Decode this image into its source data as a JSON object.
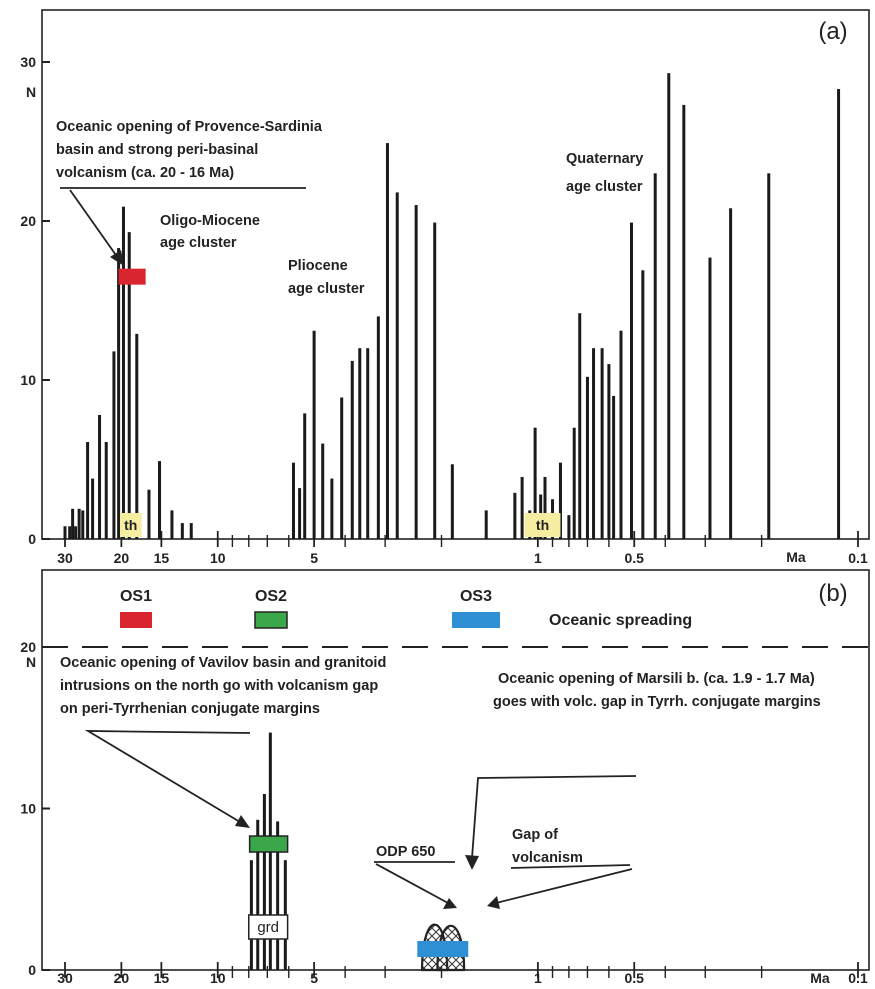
{
  "chart_data": [
    {
      "type": "bar",
      "panel_label": "(a)",
      "ylabel": "N",
      "ylim": [
        0,
        33
      ],
      "y_ticks": [
        {
          "value": 0,
          "label": "0"
        },
        {
          "value": 10,
          "label": "10"
        },
        {
          "value": 20,
          "label": "20"
        },
        {
          "value": 30,
          "label": "30"
        }
      ],
      "x_scale": "log",
      "x_direction": "reversed",
      "xlabel": "Ma",
      "x_ticks": [
        {
          "value": 30,
          "label": "30"
        },
        {
          "value": 20,
          "label": "20"
        },
        {
          "value": 15,
          "label": "15"
        },
        {
          "value": 10,
          "label": "10"
        },
        {
          "value": 5,
          "label": "5"
        },
        {
          "value": 1,
          "label": "1"
        },
        {
          "value": 0.5,
          "label": "0.5"
        },
        {
          "value": 0.1,
          "label": "0.1"
        }
      ],
      "x_minor_ticks": [
        9,
        8,
        7,
        6,
        4,
        3,
        2,
        0.9,
        0.8,
        0.7,
        0.6,
        0.4,
        0.3,
        0.2
      ],
      "series": [
        {
          "points": [
            {
              "x": 30,
              "y": 0.8
            },
            {
              "x": 29,
              "y": 0.8
            },
            {
              "x": 28.4,
              "y": 1.9
            },
            {
              "x": 27.8,
              "y": 0.8
            },
            {
              "x": 27.1,
              "y": 1.9
            },
            {
              "x": 26.4,
              "y": 1.8
            },
            {
              "x": 25.5,
              "y": 6.1
            },
            {
              "x": 24.6,
              "y": 3.8
            },
            {
              "x": 23.4,
              "y": 7.8
            },
            {
              "x": 22.3,
              "y": 6.1
            },
            {
              "x": 21.1,
              "y": 11.8
            },
            {
              "x": 20.4,
              "y": 18.3
            },
            {
              "x": 19.7,
              "y": 20.9
            },
            {
              "x": 18.9,
              "y": 19.3
            },
            {
              "x": 17.9,
              "y": 12.9
            },
            {
              "x": 16.4,
              "y": 3.1
            },
            {
              "x": 15.2,
              "y": 4.9
            },
            {
              "x": 13.9,
              "y": 1.8
            },
            {
              "x": 12.9,
              "y": 1.0
            },
            {
              "x": 12.1,
              "y": 1.0
            },
            {
              "x": 5.8,
              "y": 4.8
            },
            {
              "x": 5.55,
              "y": 3.2
            },
            {
              "x": 5.35,
              "y": 7.9
            },
            {
              "x": 5.0,
              "y": 13.1
            },
            {
              "x": 4.7,
              "y": 6.0
            },
            {
              "x": 4.4,
              "y": 3.8
            },
            {
              "x": 4.1,
              "y": 8.9
            },
            {
              "x": 3.8,
              "y": 11.2
            },
            {
              "x": 3.6,
              "y": 12.0
            },
            {
              "x": 3.4,
              "y": 12.0
            },
            {
              "x": 3.15,
              "y": 14.0
            },
            {
              "x": 2.95,
              "y": 24.9
            },
            {
              "x": 2.75,
              "y": 21.8
            },
            {
              "x": 2.4,
              "y": 21.0
            },
            {
              "x": 2.1,
              "y": 19.9
            },
            {
              "x": 1.85,
              "y": 4.7
            },
            {
              "x": 1.45,
              "y": 1.8
            },
            {
              "x": 1.18,
              "y": 2.9
            },
            {
              "x": 1.12,
              "y": 3.9
            },
            {
              "x": 1.06,
              "y": 1.8
            },
            {
              "x": 1.02,
              "y": 7.0
            },
            {
              "x": 0.98,
              "y": 2.8
            },
            {
              "x": 0.95,
              "y": 3.9
            },
            {
              "x": 0.9,
              "y": 2.5
            },
            {
              "x": 0.85,
              "y": 4.8
            },
            {
              "x": 0.8,
              "y": 1.5
            },
            {
              "x": 0.77,
              "y": 7.0
            },
            {
              "x": 0.74,
              "y": 14.2
            },
            {
              "x": 0.7,
              "y": 10.2
            },
            {
              "x": 0.67,
              "y": 12.0
            },
            {
              "x": 0.63,
              "y": 12.0
            },
            {
              "x": 0.6,
              "y": 11.0
            },
            {
              "x": 0.58,
              "y": 9.0
            },
            {
              "x": 0.55,
              "y": 13.1
            },
            {
              "x": 0.51,
              "y": 19.9
            },
            {
              "x": 0.47,
              "y": 16.9
            },
            {
              "x": 0.43,
              "y": 23.0
            },
            {
              "x": 0.39,
              "y": 29.3
            },
            {
              "x": 0.35,
              "y": 27.3
            },
            {
              "x": 0.29,
              "y": 17.7
            },
            {
              "x": 0.25,
              "y": 20.8
            },
            {
              "x": 0.19,
              "y": 23.0
            },
            {
              "x": 0.115,
              "y": 28.3
            }
          ]
        }
      ],
      "markers": [
        {
          "label": "",
          "from": 20.4,
          "to": 16.8,
          "value": 16.5,
          "color": "#d9262e"
        }
      ],
      "boxed_labels": [
        {
          "text": "th",
          "from": 20.2,
          "to": 17.3,
          "color": "#f7eda0"
        },
        {
          "text": "th",
          "from": 1.1,
          "to": 0.85,
          "color": "#f7eda0"
        }
      ],
      "annotations": [
        {
          "lines": [
            "Oceanic opening of Provence-Sardinia",
            "basin and strong peri-basinal",
            "volcanism (ca. 20 - 16 Ma)"
          ]
        },
        {
          "lines": [
            "Oligo-Miocene",
            "age cluster"
          ]
        },
        {
          "lines": [
            "Pliocene",
            "age cluster"
          ]
        },
        {
          "lines": [
            "Quaternary",
            "age cluster"
          ]
        }
      ]
    },
    {
      "type": "bar",
      "panel_label": "(b)",
      "ylabel": "N",
      "ylim": [
        0,
        22
      ],
      "y_ticks": [
        {
          "value": 0,
          "label": "0"
        },
        {
          "value": 10,
          "label": "10"
        },
        {
          "value": 20,
          "label": "20"
        }
      ],
      "x_scale": "log",
      "x_direction": "reversed",
      "xlabel": "Ma",
      "x_ticks": [
        {
          "value": 30,
          "label": "30"
        },
        {
          "value": 20,
          "label": "20"
        },
        {
          "value": 15,
          "label": "15"
        },
        {
          "value": 10,
          "label": "10"
        },
        {
          "value": 5,
          "label": "5"
        },
        {
          "value": 1,
          "label": "1"
        },
        {
          "value": 0.5,
          "label": "0.5"
        },
        {
          "value": 0.1,
          "label": "0.1"
        }
      ],
      "x_minor_ticks": [
        9,
        8,
        7,
        6,
        4,
        3,
        2,
        0.9,
        0.8,
        0.7,
        0.6,
        0.4,
        0.3,
        0.2
      ],
      "dashed_line_y": 20,
      "series": [
        {
          "points": [
            {
              "x": 7.85,
              "y": 6.8
            },
            {
              "x": 7.5,
              "y": 9.3
            },
            {
              "x": 7.15,
              "y": 10.9
            },
            {
              "x": 6.85,
              "y": 14.7
            },
            {
              "x": 6.5,
              "y": 9.2
            },
            {
              "x": 6.15,
              "y": 6.8
            }
          ]
        }
      ],
      "arches": [
        {
          "from": 2.3,
          "to": 1.92,
          "peak": 3.5
        },
        {
          "from": 2.06,
          "to": 1.7,
          "peak": 3.4
        }
      ],
      "legend_markers": [
        {
          "label": "OS1",
          "color": "#d9262e"
        },
        {
          "label": "OS2",
          "color": "#3aa84a"
        },
        {
          "label": "OS3",
          "color": "#2f8fd4"
        }
      ],
      "legend_caption": "Oceanic spreading",
      "markers": [
        {
          "label": "",
          "from": 7.95,
          "to": 6.05,
          "value": 7.8,
          "color": "#3aa84a"
        },
        {
          "label": "",
          "from": 2.38,
          "to": 1.65,
          "value": 1.3,
          "color": "#2f8fd4"
        }
      ],
      "boxed_labels": [
        {
          "text": "grd",
          "from": 8.0,
          "to": 6.05,
          "color": "#ffffff"
        }
      ],
      "annotations": [
        {
          "lines": [
            "Oceanic opening of Vavilov basin and granitoid",
            "intrusions on the north go with volcanism gap",
            "on peri-Tyrrhenian conjugate margins"
          ]
        },
        {
          "lines": [
            "Oceanic opening of Marsili b.  (ca. 1.9 - 1.7 Ma)",
            "goes with volc. gap in Tyrrh.  conjugate margins"
          ]
        },
        {
          "lines": [
            "ODP 650"
          ]
        },
        {
          "lines": [
            "Gap of",
            "volcanism"
          ]
        }
      ]
    }
  ]
}
